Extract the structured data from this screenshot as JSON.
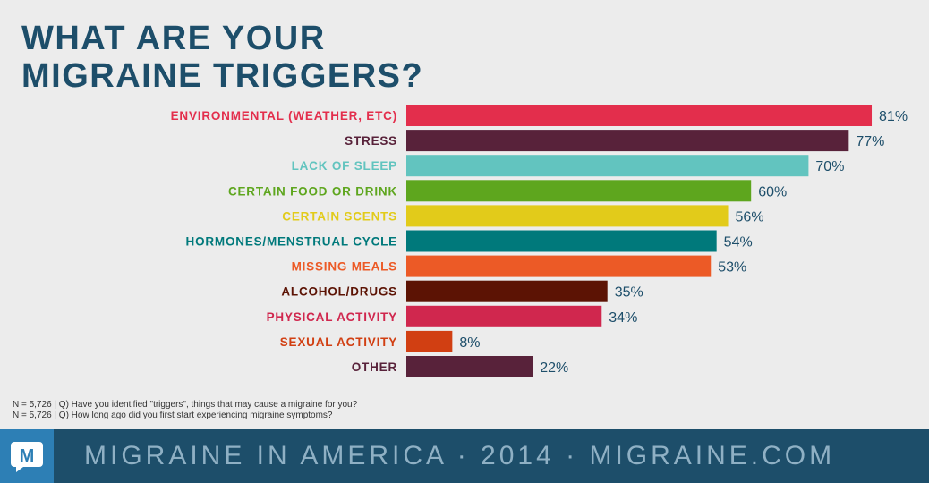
{
  "header": {
    "title_line1": "WHAT ARE YOUR",
    "title_line2": "MIGRAINE TRIGGERS?"
  },
  "chart_data": {
    "type": "bar",
    "orientation": "horizontal",
    "xlim": [
      0,
      100
    ],
    "grid": false,
    "categories": [
      "ENVIRONMENTAL (WEATHER, ETC)",
      "STRESS",
      "LACK OF SLEEP",
      "CERTAIN FOOD OR DRINK",
      "CERTAIN SCENTS",
      "HORMONES/MENSTRUAL CYCLE",
      "MISSING MEALS",
      "ALCOHOL/DRUGS",
      "PHYSICAL ACTIVITY",
      "SEXUAL ACTIVITY",
      "OTHER"
    ],
    "values": [
      81,
      77,
      70,
      60,
      56,
      54,
      53,
      35,
      34,
      8,
      22
    ],
    "value_labels": [
      "81%",
      "77%",
      "70%",
      "60%",
      "56%",
      "54%",
      "53%",
      "35%",
      "34%",
      "8%",
      "22%"
    ],
    "colors": [
      "#e32e4c",
      "#58223a",
      "#62c4bf",
      "#5ea61e",
      "#e2cb1a",
      "#00797b",
      "#ec5a26",
      "#5c1304",
      "#d0274e",
      "#d13f12",
      "#58223a"
    ]
  },
  "notes": [
    "N = 5,726  | Q) Have you identified \"triggers\", things that may cause a migraine for you?",
    "N = 5,726  | Q) How long ago did you first start experiencing migraine symptoms?"
  ],
  "footer": {
    "logo_letter": "M",
    "text": "MIGRAINE IN AMERICA · 2014 · MIGRAINE.COM"
  },
  "colors": {
    "title": "#1d4e6a",
    "footer_bg": "#1d4e6a",
    "footer_text": "#8fb0c4",
    "logo_bg": "#2d7fb5"
  }
}
